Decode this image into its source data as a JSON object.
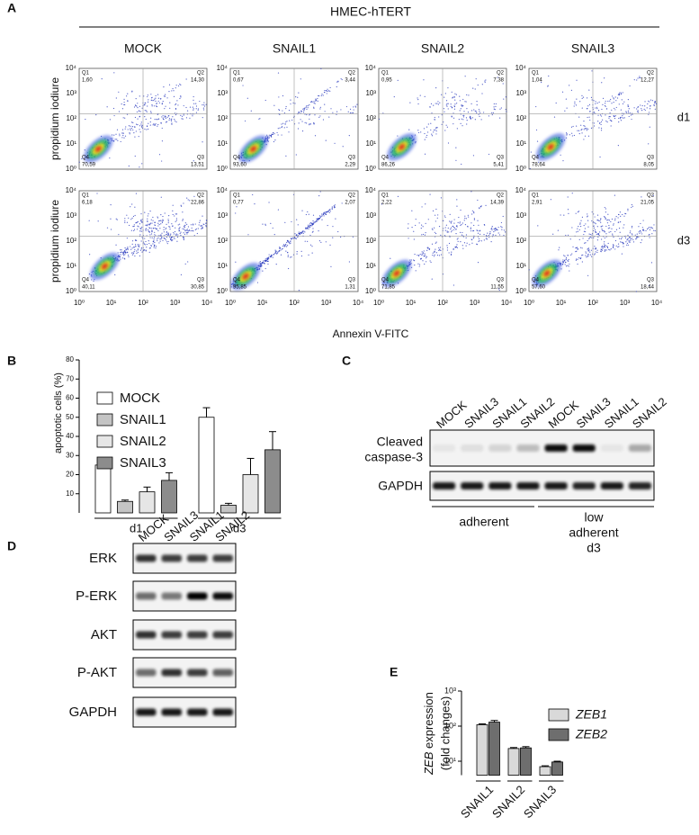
{
  "panel_labels": {
    "a": "A",
    "b": "B",
    "c": "C",
    "d": "D",
    "e": "E"
  },
  "flow": {
    "header": "HMEC-hTERT",
    "columns": [
      "MOCK",
      "SNAIL1",
      "SNAIL2",
      "SNAIL3"
    ],
    "rows": [
      "d1",
      "d3"
    ],
    "ylabel": "propidium iodiure",
    "xlabel": "Annexin V-FITC",
    "ticks": [
      "10⁰",
      "10¹",
      "10²",
      "10³",
      "10⁴"
    ],
    "quadrant_names": [
      "Q1",
      "Q2",
      "Q3",
      "Q4"
    ],
    "quadrants": [
      [
        [
          "1,60",
          "14,30",
          "13,51",
          "70,59"
        ],
        [
          "0,67",
          "3,44",
          "2,29",
          "93,60"
        ],
        [
          "0,95",
          "7,38",
          "5,41",
          "86,26"
        ],
        [
          "1,04",
          "12,27",
          "8,05",
          "78,64"
        ]
      ],
      [
        [
          "6,18",
          "22,86",
          "30,85",
          "40,11"
        ],
        [
          "0,77",
          "2,07",
          "1,31",
          "95,85"
        ],
        [
          "2,22",
          "14,39",
          "11,55",
          "71,85"
        ],
        [
          "2,91",
          "21,05",
          "18,44",
          "57,60"
        ]
      ]
    ]
  },
  "chart_data": [
    {
      "type": "bar",
      "ylabel": "apoptotic cells (%)",
      "categories": [
        "d1",
        "d3"
      ],
      "series": [
        {
          "name": "MOCK",
          "color": "#ffffff",
          "values": [
            25,
            50
          ],
          "errors": [
            3,
            5
          ]
        },
        {
          "name": "SNAIL1",
          "color": "#c4c4c4",
          "values": [
            6,
            4
          ],
          "errors": [
            0.7,
            1
          ]
        },
        {
          "name": "SNAIL2",
          "color": "#e6e6e6",
          "values": [
            11,
            20
          ],
          "errors": [
            2.5,
            8.5
          ]
        },
        {
          "name": "SNAIL3",
          "color": "#8c8c8c",
          "values": [
            17,
            33
          ],
          "errors": [
            4,
            9.5
          ]
        }
      ],
      "ylim": [
        0,
        80
      ],
      "yticks": [
        10,
        20,
        30,
        40,
        50,
        60,
        70,
        80
      ]
    },
    {
      "type": "bar",
      "log_scale": true,
      "ylabel": [
        "ZEB",
        " expression"
      ],
      "ylabel2": "(fold changes)",
      "categories": [
        "SNAIL1",
        "SNAIL2",
        "SNAIL3"
      ],
      "series": [
        {
          "name": "ZEB1",
          "color": "#d9d9d9",
          "values": [
            110,
            23,
            7
          ],
          "errors": [
            6,
            1.5,
            0.4
          ]
        },
        {
          "name": "ZEB2",
          "color": "#6e6e6e",
          "values": [
            130,
            24,
            9.5
          ],
          "errors": [
            15,
            2,
            0.5
          ]
        }
      ],
      "ylim": [
        4,
        1000
      ],
      "yticks": [
        {
          "value": 10,
          "label": "10¹"
        },
        {
          "value": 100,
          "label": "10²"
        },
        {
          "value": 1000,
          "label": "10³"
        }
      ]
    }
  ],
  "blot_c": {
    "lanes": [
      "MOCK",
      "SNAIL3",
      "SNAIL1",
      "SNAIL2",
      "MOCK",
      "SNAIL3",
      "SNAIL1",
      "SNAIL2"
    ],
    "row_labels": [
      [
        "Cleaved",
        "caspase-3"
      ],
      [
        "GAPDH"
      ]
    ],
    "groups": [
      [
        "adherent"
      ],
      [
        "low",
        "adherent",
        "d3"
      ]
    ]
  },
  "blot_d": {
    "lanes": [
      "MOCK",
      "SNAIL3",
      "SNAIL1",
      "SNAIL2"
    ],
    "row_labels": [
      "ERK",
      "P-ERK",
      "AKT",
      "P-AKT",
      "GAPDH"
    ]
  }
}
